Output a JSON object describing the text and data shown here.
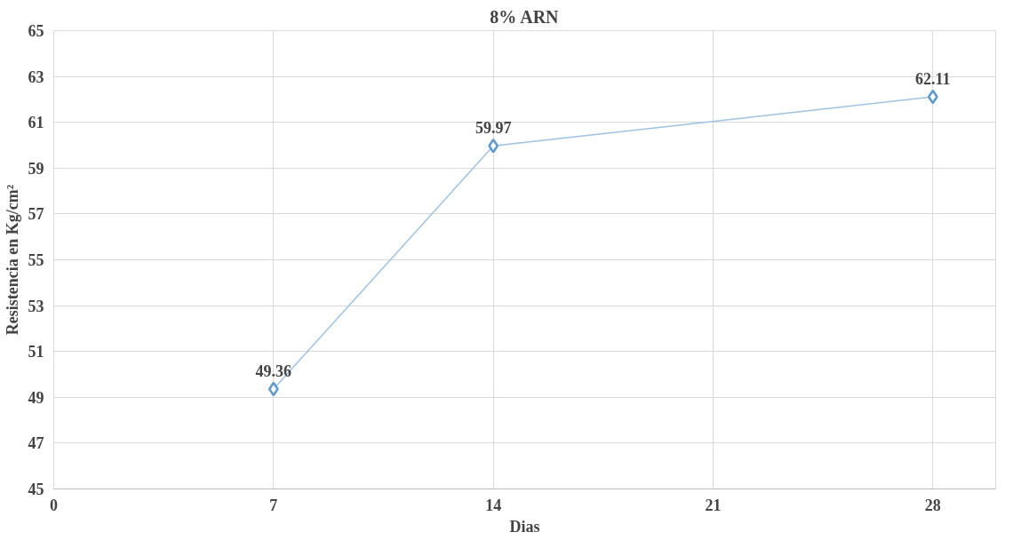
{
  "chart_data": {
    "type": "line",
    "title": "8% ARN",
    "xlabel": "Dias",
    "ylabel": "Resistencia en Kg/cm²",
    "x": [
      7,
      14,
      28
    ],
    "series": [
      {
        "color": "#5b9bd5",
        "values": [
          49.36,
          59.97,
          62.11
        ]
      }
    ],
    "xlim": [
      0,
      30
    ],
    "xticks": [
      0,
      7,
      14,
      21,
      28
    ],
    "ylim": [
      45,
      65
    ],
    "yticks": [
      45,
      47,
      49,
      51,
      53,
      55,
      57,
      59,
      61,
      63,
      65
    ],
    "grid": true,
    "marker": "diamond",
    "line_style": "solid",
    "data_labels": true
  }
}
